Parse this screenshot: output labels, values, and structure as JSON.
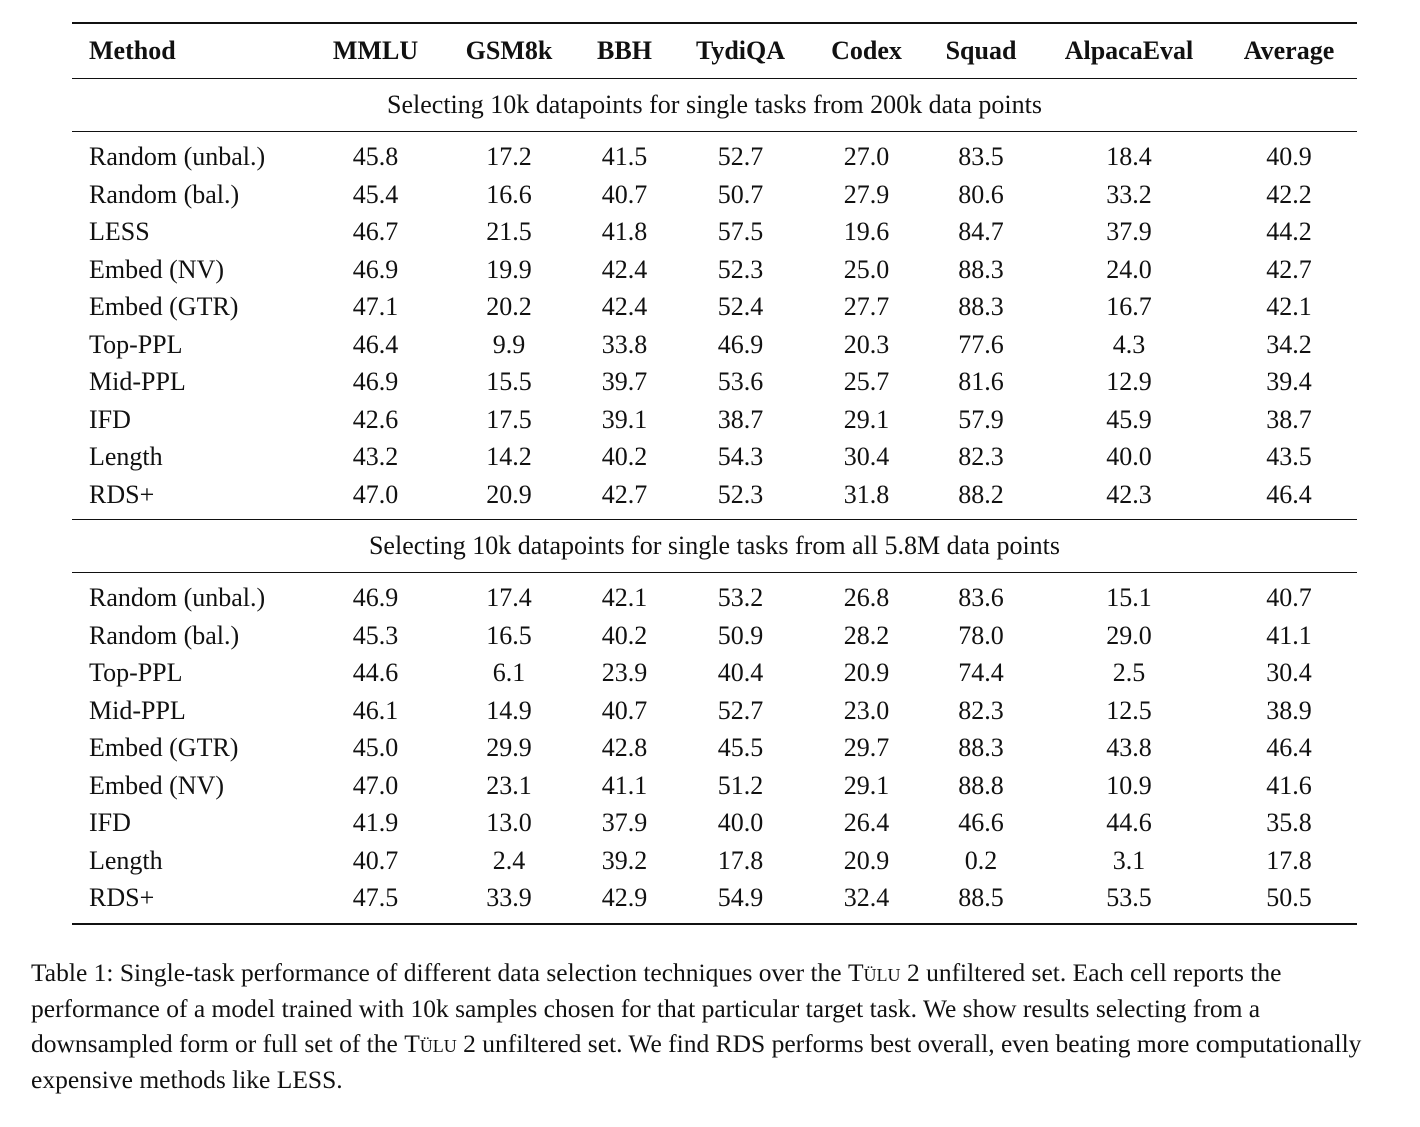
{
  "table": {
    "columns": [
      "Method",
      "MMLU",
      "GSM8k",
      "BBH",
      "TydiQA",
      "Codex",
      "Squad",
      "AlpacaEval",
      "Average"
    ],
    "sections": [
      {
        "title": "Selecting 10k datapoints for single tasks from 200k data points",
        "rows": [
          {
            "method": "Random (unbal.)",
            "values": [
              "45.8",
              "17.2",
              "41.5",
              "52.7",
              "27.0",
              "83.5",
              "18.4",
              "40.9"
            ],
            "bold": []
          },
          {
            "method": "Random (bal.)",
            "values": [
              "45.4",
              "16.6",
              "40.7",
              "50.7",
              "27.9",
              "80.6",
              "33.2",
              "42.2"
            ],
            "bold": []
          },
          {
            "method": "LESS",
            "values": [
              "46.7",
              "21.5",
              "41.8",
              "57.5",
              "19.6",
              "84.7",
              "37.9",
              "44.2"
            ],
            "bold": [
              1,
              3
            ]
          },
          {
            "method": "Embed (NV)",
            "values": [
              "46.9",
              "19.9",
              "42.4",
              "52.3",
              "25.0",
              "88.3",
              "24.0",
              "42.7"
            ],
            "bold": [
              5
            ]
          },
          {
            "method": "Embed (GTR)",
            "values": [
              "47.1",
              "20.2",
              "42.4",
              "52.4",
              "27.7",
              "88.3",
              "16.7",
              "42.1"
            ],
            "bold": [
              0,
              5
            ]
          },
          {
            "method": "Top-PPL",
            "values": [
              "46.4",
              "9.9",
              "33.8",
              "46.9",
              "20.3",
              "77.6",
              "4.3",
              "34.2"
            ],
            "bold": []
          },
          {
            "method": "Mid-PPL",
            "values": [
              "46.9",
              "15.5",
              "39.7",
              "53.6",
              "25.7",
              "81.6",
              "12.9",
              "39.4"
            ],
            "bold": []
          },
          {
            "method": "IFD",
            "values": [
              "42.6",
              "17.5",
              "39.1",
              "38.7",
              "29.1",
              "57.9",
              "45.9",
              "38.7"
            ],
            "bold": []
          },
          {
            "method": "Length",
            "values": [
              "43.2",
              "14.2",
              "40.2",
              "54.3",
              "30.4",
              "82.3",
              "40.0",
              "43.5"
            ],
            "bold": []
          },
          {
            "method": "RDS+",
            "method_bold": true,
            "values": [
              "47.0",
              "20.9",
              "42.7",
              "52.3",
              "31.8",
              "88.2",
              "42.3",
              "46.4"
            ],
            "bold": [
              2,
              4,
              6,
              7
            ]
          }
        ]
      },
      {
        "title": "Selecting 10k datapoints for single tasks from all 5.8M data points",
        "rows": [
          {
            "method": "Random (unbal.)",
            "values": [
              "46.9",
              "17.4",
              "42.1",
              "53.2",
              "26.8",
              "83.6",
              "15.1",
              "40.7"
            ],
            "bold": []
          },
          {
            "method": "Random (bal.)",
            "values": [
              "45.3",
              "16.5",
              "40.2",
              "50.9",
              "28.2",
              "78.0",
              "29.0",
              "41.1"
            ],
            "bold": []
          },
          {
            "method": "Top-PPL",
            "values": [
              "44.6",
              "6.1",
              "23.9",
              "40.4",
              "20.9",
              "74.4",
              "2.5",
              "30.4"
            ],
            "bold": []
          },
          {
            "method": "Mid-PPL",
            "values": [
              "46.1",
              "14.9",
              "40.7",
              "52.7",
              "23.0",
              "82.3",
              "12.5",
              "38.9"
            ],
            "bold": []
          },
          {
            "method": "Embed (GTR)",
            "values": [
              "45.0",
              "29.9",
              "42.8",
              "45.5",
              "29.7",
              "88.3",
              "43.8",
              "46.4"
            ],
            "bold": []
          },
          {
            "method": "Embed (NV)",
            "values": [
              "47.0",
              "23.1",
              "41.1",
              "51.2",
              "29.1",
              "88.8",
              "10.9",
              "41.6"
            ],
            "bold": [
              5
            ]
          },
          {
            "method": "IFD",
            "values": [
              "41.9",
              "13.0",
              "37.9",
              "40.0",
              "26.4",
              "46.6",
              "44.6",
              "35.8"
            ],
            "bold": []
          },
          {
            "method": "Length",
            "values": [
              "40.7",
              "2.4",
              "39.2",
              "17.8",
              "20.9",
              "0.2",
              "3.1",
              "17.8"
            ],
            "bold": []
          },
          {
            "method": "RDS+",
            "method_bold": true,
            "values": [
              "47.5",
              "33.9",
              "42.9",
              "54.9",
              "32.4",
              "88.5",
              "53.5",
              "50.5"
            ],
            "bold": [
              0,
              1,
              2,
              3,
              4,
              6,
              7
            ]
          }
        ]
      }
    ]
  },
  "caption": {
    "p1": "Table 1: Single-task performance of different data selection techniques over the ",
    "tulu1": "Tülu",
    "p2": " 2 unfiltered set. Each cell reports the performance of a model trained with 10k samples chosen for that particular target task. We show results selecting from a downsampled form or full set of the ",
    "tulu2": "Tülu",
    "p3": " 2 unfiltered set. We find RDS performs best overall, even beating more computationally expensive methods like LESS."
  }
}
